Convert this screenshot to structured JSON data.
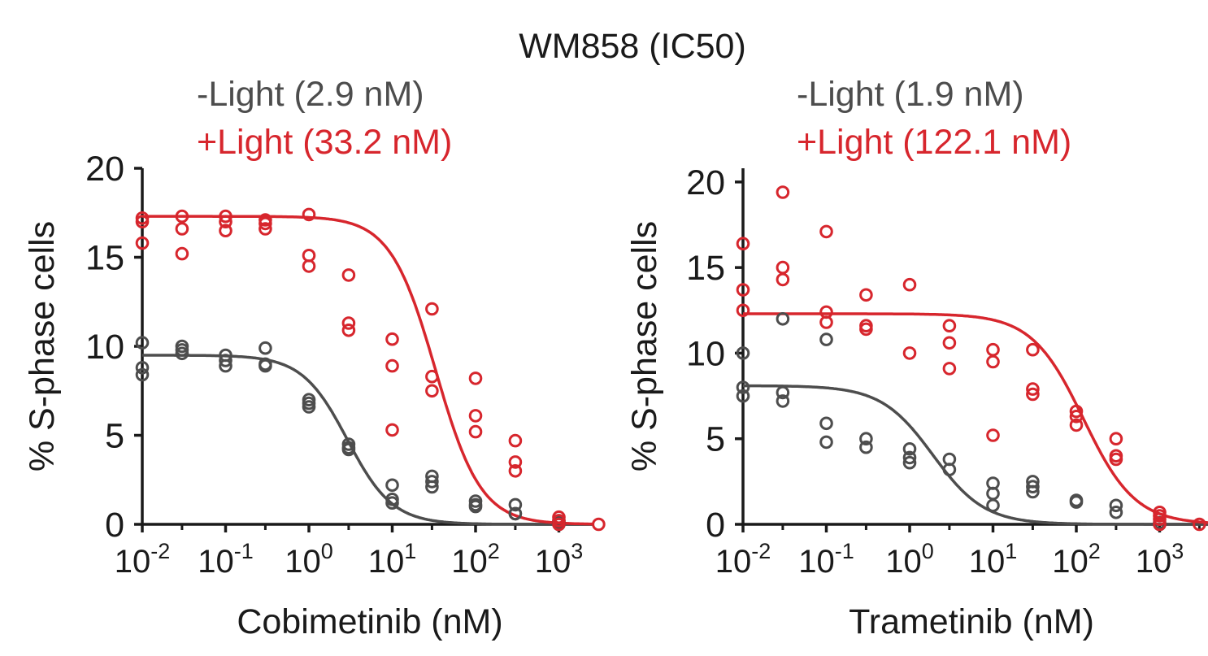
{
  "figure_title": "WM858 (IC50)",
  "colors": {
    "dark": "#4d4d4d",
    "light": "#d7262d",
    "axis": "#1a1a1a"
  },
  "chart_data": [
    {
      "type": "scatter",
      "xscale": "log",
      "xlim_log10": [
        -2,
        3.4
      ],
      "ylim": [
        0,
        20
      ],
      "yticks": [
        0,
        5,
        10,
        15,
        20
      ],
      "xticks_log10": [
        -2,
        -1,
        0,
        1,
        2,
        3
      ],
      "ylabel": "% S-phase cells",
      "xlabel": "Cobimetinib (nM)",
      "legend": [
        {
          "series": "dark",
          "text": "-Light (2.9 nM)"
        },
        {
          "series": "light",
          "text": "+Light (33.2 nM)"
        }
      ],
      "series": [
        {
          "name": "-Light",
          "color": "dark",
          "fit": {
            "top": 9.5,
            "bottom": 0,
            "ic50": 2.9,
            "hill": 1.6
          },
          "points": [
            [
              0.01,
              10.2
            ],
            [
              0.01,
              8.8
            ],
            [
              0.01,
              8.4
            ],
            [
              0.03,
              10.0
            ],
            [
              0.03,
              9.8
            ],
            [
              0.03,
              9.6
            ],
            [
              0.1,
              9.5
            ],
            [
              0.1,
              9.2
            ],
            [
              0.1,
              8.9
            ],
            [
              0.3,
              9.9
            ],
            [
              0.3,
              9.0
            ],
            [
              0.3,
              8.9
            ],
            [
              1,
              7.0
            ],
            [
              1,
              6.8
            ],
            [
              1,
              6.6
            ],
            [
              3,
              4.5
            ],
            [
              3,
              4.3
            ],
            [
              3,
              4.2
            ],
            [
              10,
              2.2
            ],
            [
              10,
              1.4
            ],
            [
              10,
              1.2
            ],
            [
              30,
              2.7
            ],
            [
              30,
              2.4
            ],
            [
              30,
              2.1
            ],
            [
              100,
              1.3
            ],
            [
              100,
              1.1
            ],
            [
              100,
              1.0
            ],
            [
              300,
              1.1
            ],
            [
              300,
              0.6
            ],
            [
              300,
              0.6
            ],
            [
              1000,
              0.2
            ],
            [
              1000,
              0.1
            ],
            [
              1000,
              0.0
            ]
          ]
        },
        {
          "name": "+Light",
          "color": "light",
          "fit": {
            "top": 17.3,
            "bottom": 0,
            "ic50": 33.2,
            "hill": 1.6
          },
          "points": [
            [
              0.01,
              17.2
            ],
            [
              0.01,
              17.0
            ],
            [
              0.01,
              15.8
            ],
            [
              0.03,
              17.3
            ],
            [
              0.03,
              16.6
            ],
            [
              0.03,
              15.2
            ],
            [
              0.1,
              17.3
            ],
            [
              0.1,
              17.0
            ],
            [
              0.1,
              16.5
            ],
            [
              0.3,
              17.1
            ],
            [
              0.3,
              16.9
            ],
            [
              0.3,
              16.6
            ],
            [
              1,
              17.4
            ],
            [
              1,
              15.1
            ],
            [
              1,
              14.5
            ],
            [
              3,
              14.0
            ],
            [
              3,
              11.3
            ],
            [
              3,
              10.9
            ],
            [
              10,
              10.4
            ],
            [
              10,
              8.9
            ],
            [
              10,
              5.3
            ],
            [
              30,
              12.1
            ],
            [
              30,
              8.3
            ],
            [
              30,
              7.5
            ],
            [
              100,
              8.2
            ],
            [
              100,
              6.1
            ],
            [
              100,
              5.2
            ],
            [
              300,
              4.7
            ],
            [
              300,
              3.5
            ],
            [
              300,
              3.0
            ],
            [
              1000,
              0.4
            ],
            [
              1000,
              0.2
            ],
            [
              1000,
              0.0
            ],
            [
              3000,
              0.0
            ]
          ]
        }
      ]
    },
    {
      "type": "scatter",
      "xscale": "log",
      "xlim_log10": [
        -2,
        3.6
      ],
      "ylim": [
        0,
        20.8
      ],
      "yticks": [
        0,
        5,
        10,
        15,
        20
      ],
      "xticks_log10": [
        -2,
        -1,
        0,
        1,
        2,
        3
      ],
      "ylabel": "% S-phase cells",
      "xlabel": "Trametinib (nM)",
      "legend": [
        {
          "series": "dark",
          "text": "-Light (1.9 nM)"
        },
        {
          "series": "light",
          "text": "+Light (122.1 nM)"
        }
      ],
      "series": [
        {
          "name": "-Light",
          "color": "dark",
          "fit": {
            "top": 8.1,
            "bottom": 0,
            "ic50": 1.9,
            "hill": 1.4
          },
          "points": [
            [
              0.01,
              10.0
            ],
            [
              0.01,
              8.0
            ],
            [
              0.01,
              7.5
            ],
            [
              0.03,
              12.0
            ],
            [
              0.03,
              7.7
            ],
            [
              0.03,
              7.2
            ],
            [
              0.1,
              10.8
            ],
            [
              0.1,
              5.9
            ],
            [
              0.1,
              4.8
            ],
            [
              0.3,
              5.0
            ],
            [
              0.3,
              4.5
            ],
            [
              1,
              4.4
            ],
            [
              1,
              3.9
            ],
            [
              1,
              3.6
            ],
            [
              3,
              3.8
            ],
            [
              3,
              3.2
            ],
            [
              10,
              2.4
            ],
            [
              10,
              1.8
            ],
            [
              10,
              1.1
            ],
            [
              30,
              2.5
            ],
            [
              30,
              2.2
            ],
            [
              30,
              1.9
            ],
            [
              100,
              1.4
            ],
            [
              100,
              1.3
            ],
            [
              300,
              1.1
            ],
            [
              300,
              0.7
            ],
            [
              1000,
              0.1
            ],
            [
              1000,
              0.0
            ]
          ]
        },
        {
          "name": "+Light",
          "color": "light",
          "fit": {
            "top": 12.3,
            "bottom": 0,
            "ic50": 122.1,
            "hill": 1.4
          },
          "points": [
            [
              0.01,
              16.4
            ],
            [
              0.01,
              13.7
            ],
            [
              0.01,
              12.5
            ],
            [
              0.03,
              19.4
            ],
            [
              0.03,
              15.0
            ],
            [
              0.03,
              14.3
            ],
            [
              0.1,
              17.1
            ],
            [
              0.1,
              12.4
            ],
            [
              0.1,
              11.8
            ],
            [
              0.3,
              13.4
            ],
            [
              0.3,
              11.6
            ],
            [
              0.3,
              11.4
            ],
            [
              1,
              14.0
            ],
            [
              1,
              10.0
            ],
            [
              3,
              11.6
            ],
            [
              3,
              10.6
            ],
            [
              3,
              9.1
            ],
            [
              10,
              10.2
            ],
            [
              10,
              9.5
            ],
            [
              10,
              5.2
            ],
            [
              30,
              10.2
            ],
            [
              30,
              7.9
            ],
            [
              30,
              7.6
            ],
            [
              100,
              6.6
            ],
            [
              100,
              6.3
            ],
            [
              100,
              5.8
            ],
            [
              300,
              5.0
            ],
            [
              300,
              4.0
            ],
            [
              300,
              3.8
            ],
            [
              1000,
              0.7
            ],
            [
              1000,
              0.5
            ],
            [
              1000,
              0.3
            ],
            [
              1000,
              0.0
            ],
            [
              3000,
              0.0
            ]
          ]
        }
      ]
    }
  ]
}
